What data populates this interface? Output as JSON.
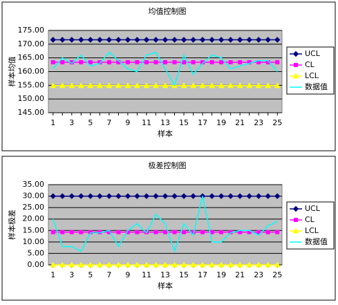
{
  "chart_data": [
    {
      "type": "line",
      "title": "均值控制图",
      "y_label": "样本均值",
      "x_label": "样本",
      "categories": [
        "1",
        null,
        "3",
        null,
        "5",
        null,
        "7",
        null,
        "9",
        null,
        "11",
        null,
        "13",
        null,
        "15",
        null,
        "17",
        null,
        "19",
        null,
        "21",
        null,
        "23",
        null,
        "25"
      ],
      "ylim": [
        145,
        175
      ],
      "yticks": [
        {
          "value": 145,
          "label": "145.00"
        },
        {
          "value": 150,
          "label": "150.00"
        },
        {
          "value": 155,
          "label": "155.00"
        },
        {
          "value": 160,
          "label": "160.00"
        },
        {
          "value": 165,
          "label": "165.00"
        },
        {
          "value": 170,
          "label": "170.00"
        },
        {
          "value": 175,
          "label": "175.00"
        }
      ],
      "grid": true,
      "legend": "right",
      "series": [
        {
          "name": "UCL",
          "color": "#000080",
          "marker": "diamond",
          "values": [
            171.6,
            171.6,
            171.6,
            171.6,
            171.6,
            171.6,
            171.6,
            171.6,
            171.6,
            171.6,
            171.6,
            171.6,
            171.6,
            171.6,
            171.6,
            171.6,
            171.6,
            171.6,
            171.6,
            171.6,
            171.6,
            171.6,
            171.6,
            171.6,
            171.6
          ]
        },
        {
          "name": "CL",
          "color": "#ff00ff",
          "marker": "square",
          "values": [
            163.4,
            163.4,
            163.4,
            163.4,
            163.4,
            163.4,
            163.4,
            163.4,
            163.4,
            163.4,
            163.4,
            163.4,
            163.4,
            163.4,
            163.4,
            163.4,
            163.4,
            163.4,
            163.4,
            163.4,
            163.4,
            163.4,
            163.4,
            163.4,
            163.4
          ]
        },
        {
          "name": "LCL",
          "color": "#ffff00",
          "marker": "triangle",
          "values": [
            154.9,
            154.9,
            154.9,
            154.9,
            154.9,
            154.9,
            154.9,
            154.9,
            154.9,
            154.9,
            154.9,
            154.9,
            154.9,
            154.9,
            154.9,
            154.9,
            154.9,
            154.9,
            154.9,
            154.9,
            154.9,
            154.9,
            154.9,
            154.9,
            154.9
          ]
        },
        {
          "name": "数据值",
          "color": "#00ffff",
          "marker": "none",
          "values": [
            161,
            165,
            163,
            166,
            162,
            163,
            167,
            164,
            161,
            160,
            166,
            167,
            161,
            155,
            166,
            159,
            163,
            166,
            165,
            161,
            162,
            163,
            164,
            164,
            160
          ]
        }
      ]
    },
    {
      "type": "line",
      "title": "极差控制图",
      "y_label": "样本极差",
      "x_label": "样本",
      "categories": [
        "1",
        null,
        "3",
        null,
        "5",
        null,
        "7",
        null,
        "9",
        null,
        "11",
        null,
        "13",
        null,
        "15",
        null,
        "17",
        null,
        "19",
        null,
        "21",
        null,
        "23",
        null,
        "25"
      ],
      "ylim": [
        0,
        35
      ],
      "yticks": [
        {
          "value": 0,
          "label": "0.00"
        },
        {
          "value": 5,
          "label": "5.00"
        },
        {
          "value": 10,
          "label": "10.00"
        },
        {
          "value": 15,
          "label": "15.00"
        },
        {
          "value": 20,
          "label": "20.00"
        },
        {
          "value": 25,
          "label": "25.00"
        },
        {
          "value": 30,
          "label": "30.00"
        },
        {
          "value": 35,
          "label": "35.00"
        }
      ],
      "grid": true,
      "legend": "right",
      "series": [
        {
          "name": "UCL",
          "color": "#000080",
          "marker": "diamond",
          "values": [
            30,
            30,
            30,
            30,
            30,
            30,
            30,
            30,
            30,
            30,
            30,
            30,
            30,
            30,
            30,
            30,
            30,
            30,
            30,
            30,
            30,
            30,
            30,
            30,
            30
          ]
        },
        {
          "name": "CL",
          "color": "#ff00ff",
          "marker": "square",
          "values": [
            14.3,
            14.3,
            14.3,
            14.3,
            14.3,
            14.3,
            14.3,
            14.3,
            14.3,
            14.3,
            14.3,
            14.3,
            14.3,
            14.3,
            14.3,
            14.3,
            14.3,
            14.3,
            14.3,
            14.3,
            14.3,
            14.3,
            14.3,
            14.3,
            14.3
          ]
        },
        {
          "name": "LCL",
          "color": "#ffff00",
          "marker": "triangle",
          "values": [
            0,
            0,
            0,
            0,
            0,
            0,
            0,
            0,
            0,
            0,
            0,
            0,
            0,
            0,
            0,
            0,
            0,
            0,
            0,
            0,
            0,
            0,
            0,
            0,
            0
          ]
        },
        {
          "name": "数据值",
          "color": "#00ffff",
          "marker": "none",
          "values": [
            20,
            8,
            8,
            6,
            14,
            14,
            15,
            8,
            15,
            18,
            14,
            22,
            18,
            6,
            18,
            13,
            30,
            10,
            10,
            14,
            15,
            15,
            13,
            17,
            19
          ]
        }
      ]
    }
  ]
}
